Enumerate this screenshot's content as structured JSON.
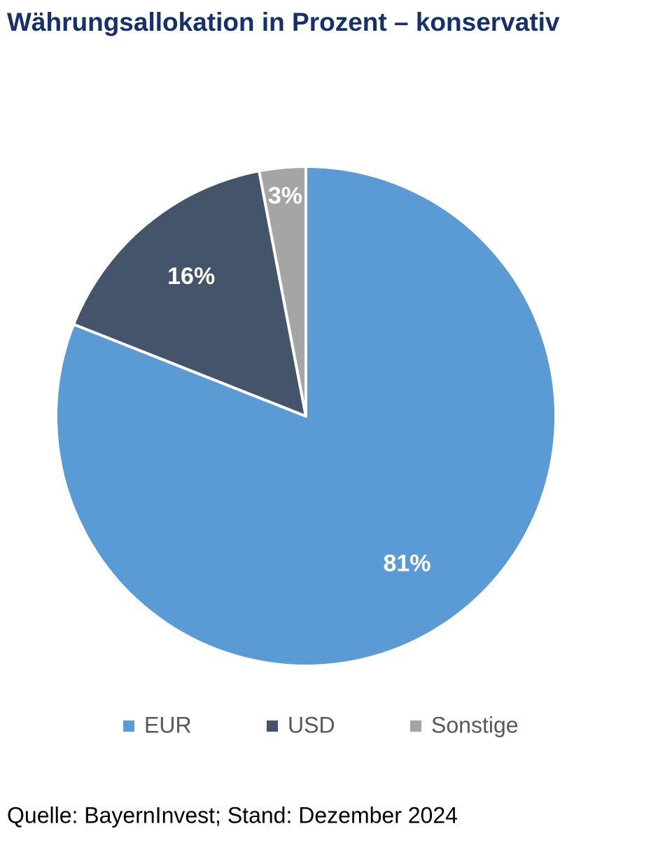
{
  "chart_data": {
    "type": "pie",
    "title": "Währungsallokation in Prozent – konservativ",
    "categories": [
      "EUR",
      "USD",
      "Sonstige"
    ],
    "values": [
      81,
      16,
      3
    ],
    "value_labels": [
      "81%",
      "16%",
      "3%"
    ],
    "colors": [
      "#5b9bd5",
      "#44546a",
      "#a5a5a5"
    ],
    "source": "Quelle: BayernInvest; Stand: Dezember 2024"
  }
}
